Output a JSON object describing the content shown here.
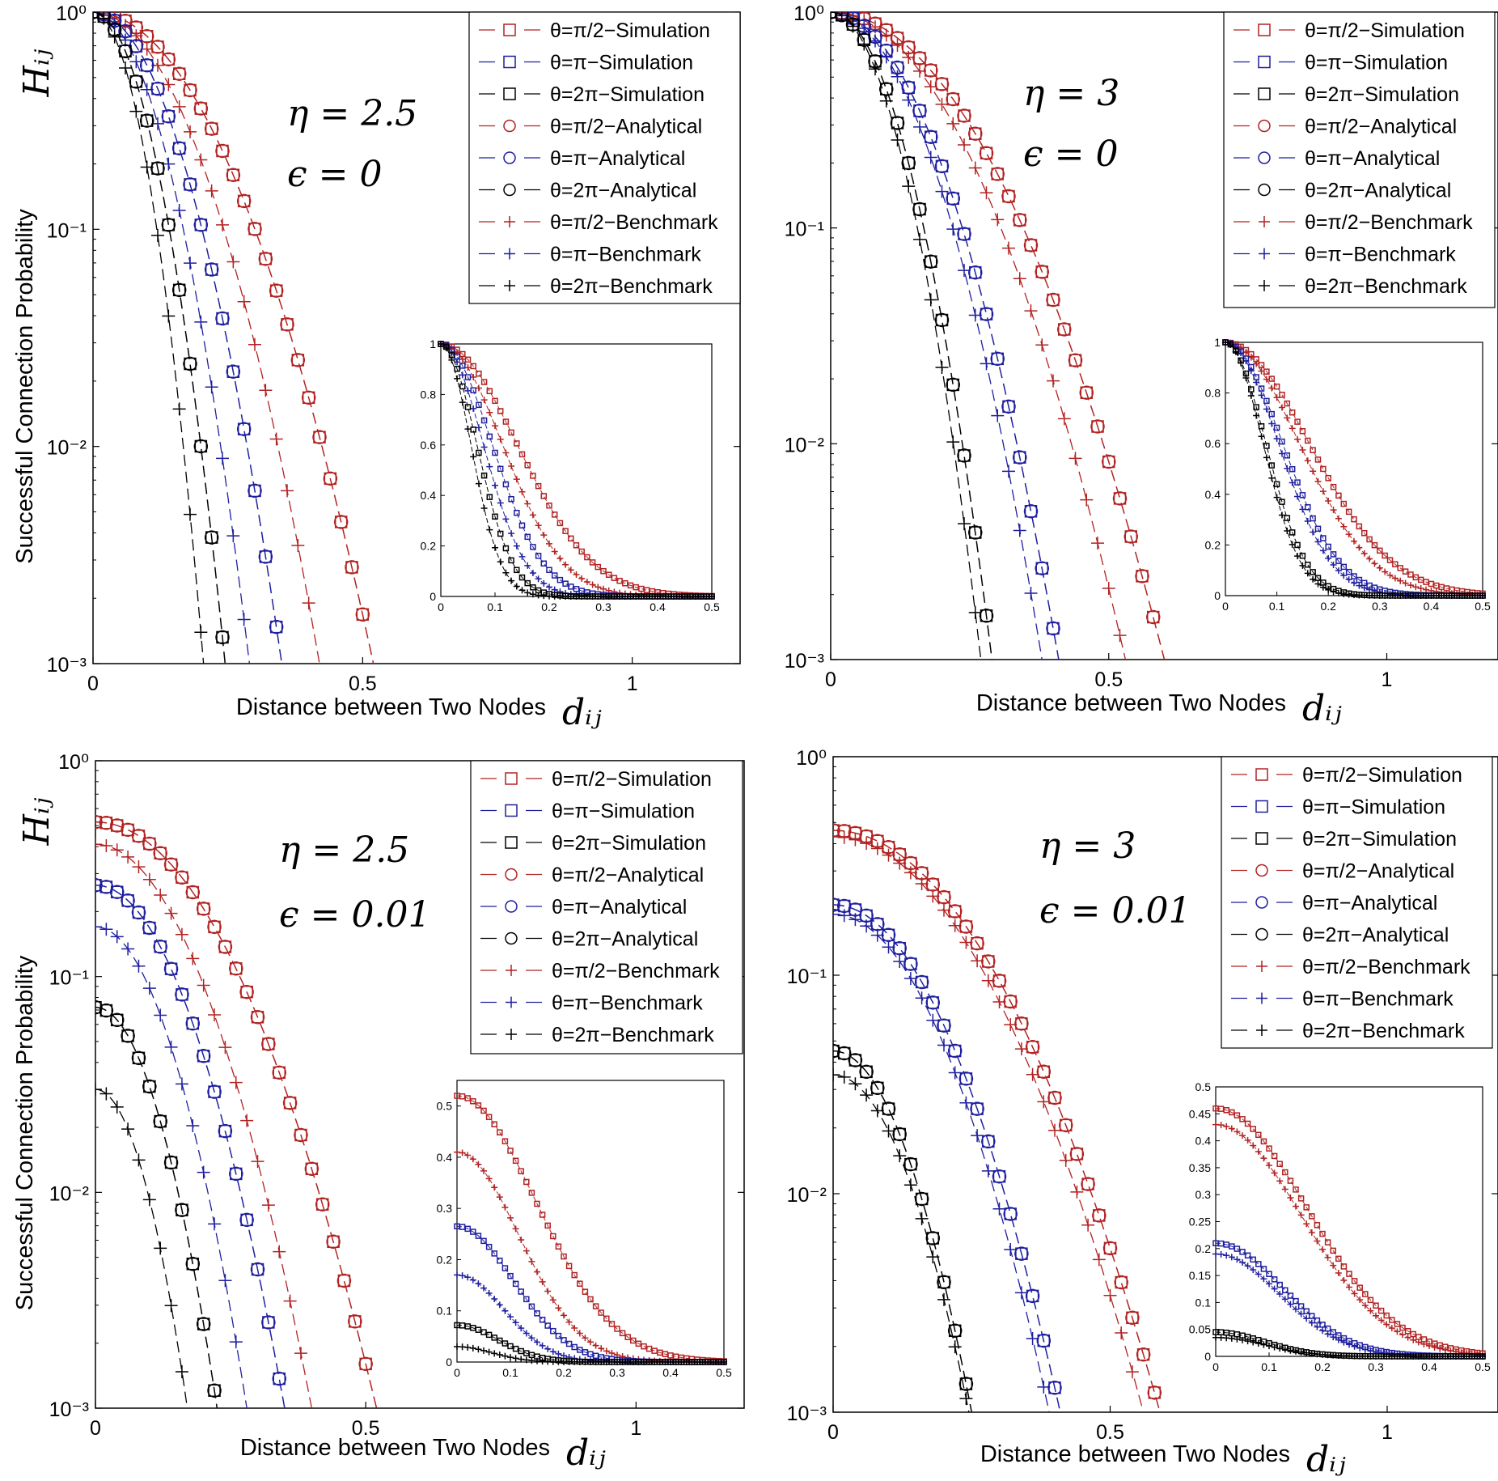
{
  "colors": {
    "pi_half": "#b22222",
    "pi": "#1f1f9f",
    "two_pi": "#000000"
  },
  "chart_data": [
    {
      "type": "line",
      "panel": "top-left",
      "eta": 2.5,
      "epsilon": 0,
      "annotation_eta": "η = 2.5",
      "annotation_eps": "ϵ = 0",
      "xlabel": "Distance between Two Nodes",
      "xlabel_math": "dᵢⱼ",
      "ylabel": "Successful Connection Probability",
      "ylabel_math": "Hᵢⱼ",
      "xlim": [
        0,
        1.2
      ],
      "ylim": [
        0.001,
        1
      ],
      "yscale": "log",
      "x_ticks": [
        "0",
        "0.5",
        "1"
      ],
      "y_ticks": [
        "10⁰",
        "10⁻¹",
        "10⁻²",
        "10⁻³"
      ],
      "legend_position": "top-right",
      "legend": [
        "θ=π/2−Simulation",
        "θ=π−Simulation",
        "θ=2π−Simulation",
        "θ=π/2−Analytical",
        "θ=π−Analytical",
        "θ=2π−Analytical",
        "θ=π/2−Benchmark",
        "θ=π−Benchmark",
        "θ=2π−Benchmark"
      ],
      "curves": {
        "pi_half": {
          "a0": 1.0,
          "x0": 0.52
        },
        "pi": {
          "a0": 1.0,
          "x0": 0.35
        },
        "two_pi": {
          "a0": 1.0,
          "x0": 0.245
        },
        "bench": {
          "pi_half": {
            "a0": 1.0,
            "x0": 0.42
          },
          "pi": {
            "a0": 1.0,
            "x0": 0.29
          },
          "two_pi": {
            "a0": 1.0,
            "x0": 0.205
          }
        }
      },
      "inset": {
        "xlim": [
          0,
          0.5
        ],
        "ylim": [
          0,
          1
        ],
        "x_ticks": [
          "0",
          "0.1",
          "0.2",
          "0.3",
          "0.4",
          "0.5"
        ],
        "y_ticks": [
          "0",
          "0.2",
          "0.4",
          "0.6",
          "0.8",
          "1"
        ]
      }
    },
    {
      "type": "line",
      "panel": "top-right",
      "eta": 3,
      "epsilon": 0,
      "annotation_eta": "η = 3",
      "annotation_eps": "ϵ = 0",
      "xlabel": "Distance between Two Nodes",
      "xlabel_math": "dᵢⱼ",
      "ylabel": "",
      "ylabel_math": "",
      "xlim": [
        0,
        1.2
      ],
      "ylim": [
        0.001,
        1
      ],
      "yscale": "log",
      "x_ticks": [
        "0",
        "0.5",
        "1"
      ],
      "y_ticks": [
        "10⁰",
        "10⁻¹",
        "10⁻²",
        "10⁻³"
      ],
      "legend_position": "top-right",
      "legend": [
        "θ=π/2−Simulation",
        "θ=π−Simulation",
        "θ=2π−Simulation",
        "θ=π/2−Analytical",
        "θ=π−Analytical",
        "θ=2π−Analytical",
        "θ=π/2−Benchmark",
        "θ=π−Benchmark",
        "θ=2π−Benchmark"
      ],
      "curves": {
        "pi_half": {
          "a0": 1.0,
          "x0": 0.6
        },
        "pi": {
          "a0": 1.0,
          "x0": 0.41
        },
        "two_pi": {
          "a0": 1.0,
          "x0": 0.29
        },
        "bench": {
          "pi_half": {
            "a0": 1.0,
            "x0": 0.53
          },
          "pi": {
            "a0": 1.0,
            "x0": 0.38
          },
          "two_pi": {
            "a0": 1.0,
            "x0": 0.27
          }
        }
      },
      "inset": {
        "xlim": [
          0,
          0.5
        ],
        "ylim": [
          0,
          1
        ],
        "x_ticks": [
          "0",
          "0.1",
          "0.2",
          "0.3",
          "0.4",
          "0.5"
        ],
        "y_ticks": [
          "0",
          "0.2",
          "0.4",
          "0.6",
          "0.8",
          "1"
        ]
      }
    },
    {
      "type": "line",
      "panel": "bottom-left",
      "eta": 2.5,
      "epsilon": 0.01,
      "annotation_eta": "η = 2.5",
      "annotation_eps": "ϵ = 0.01",
      "xlabel": "Distance between Two Nodes",
      "xlabel_math": "dᵢⱼ",
      "ylabel": "Successful Connection Probability",
      "ylabel_math": "Hᵢⱼ",
      "xlim": [
        0,
        1.2
      ],
      "ylim": [
        0.001,
        1
      ],
      "yscale": "log",
      "x_ticks": [
        "0",
        "0.5",
        "1"
      ],
      "y_ticks": [
        "10⁰",
        "10⁻¹",
        "10⁻²",
        "10⁻³"
      ],
      "legend_position": "top-right",
      "legend": [
        "θ=π/2−Simulation",
        "θ=π−Simulation",
        "θ=2π−Simulation",
        "θ=π/2−Analytical",
        "θ=π−Analytical",
        "θ=2π−Analytical",
        "θ=π/2−Benchmark",
        "θ=π−Benchmark",
        "θ=2π−Benchmark"
      ],
      "curves": {
        "pi_half": {
          "a0": 0.52,
          "x0": 0.52
        },
        "pi": {
          "a0": 0.265,
          "x0": 0.35
        },
        "two_pi": {
          "a0": 0.072,
          "x0": 0.225
        },
        "bench": {
          "pi_half": {
            "a0": 0.41,
            "x0": 0.4
          },
          "pi": {
            "a0": 0.17,
            "x0": 0.28
          },
          "two_pi": {
            "a0": 0.03,
            "x0": 0.17
          }
        }
      },
      "inset": {
        "xlim": [
          0,
          0.5
        ],
        "ylim": [
          0,
          0.55
        ],
        "x_ticks": [
          "0",
          "0.1",
          "0.2",
          "0.3",
          "0.4",
          "0.5"
        ],
        "y_ticks": [
          "0",
          "0.1",
          "0.2",
          "0.3",
          "0.4",
          "0.5"
        ]
      }
    },
    {
      "type": "line",
      "panel": "bottom-right",
      "eta": 3,
      "epsilon": 0.01,
      "annotation_eta": "η = 3",
      "annotation_eps": "ϵ = 0.01",
      "xlabel": "Distance between Two Nodes",
      "xlabel_math": "dᵢⱼ",
      "ylabel": "",
      "ylabel_math": "",
      "xlim": [
        0,
        1.2
      ],
      "ylim": [
        0.001,
        1
      ],
      "yscale": "log",
      "x_ticks": [
        "0",
        "0.5",
        "1"
      ],
      "y_ticks": [
        "10⁰",
        "10⁻¹",
        "10⁻²",
        "10⁻³"
      ],
      "legend_position": "top-right",
      "legend": [
        "θ=π/2−Simulation",
        "θ=π−Simulation",
        "θ=2π−Simulation",
        "θ=π/2−Analytical",
        "θ=π−Analytical",
        "θ=2π−Analytical",
        "θ=π/2−Benchmark",
        "θ=π−Benchmark",
        "θ=2π−Benchmark"
      ],
      "curves": {
        "pi_half": {
          "a0": 0.46,
          "x0": 0.59
        },
        "pi": {
          "a0": 0.21,
          "x0": 0.41
        },
        "two_pi": {
          "a0": 0.045,
          "x0": 0.25
        },
        "bench": {
          "pi_half": {
            "a0": 0.43,
            "x0": 0.56
          },
          "pi": {
            "a0": 0.19,
            "x0": 0.39
          },
          "two_pi": {
            "a0": 0.035,
            "x0": 0.245
          }
        }
      },
      "inset": {
        "xlim": [
          0,
          0.5
        ],
        "ylim": [
          0,
          0.5
        ],
        "x_ticks": [
          "0",
          "0.1",
          "0.2",
          "0.3",
          "0.4",
          "0.5"
        ],
        "y_ticks": [
          "0",
          "0.05",
          "0.1",
          "0.15",
          "0.2",
          "0.25",
          "0.3",
          "0.35",
          "0.4",
          "0.45",
          "0.5"
        ]
      }
    }
  ]
}
